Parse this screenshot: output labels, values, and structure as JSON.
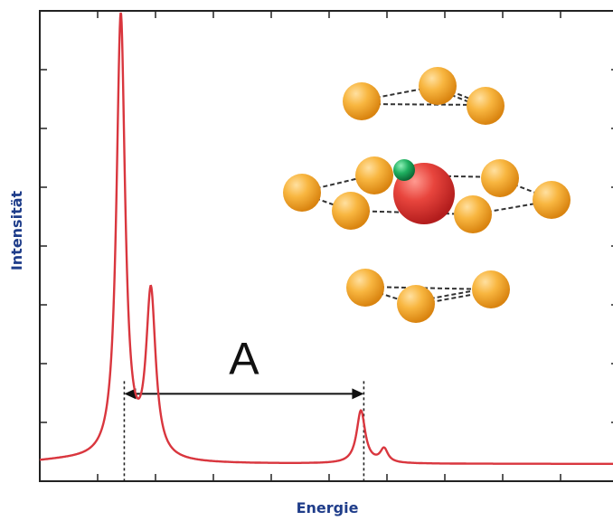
{
  "chart_data": {
    "type": "line",
    "title": "",
    "xlabel": "Energie",
    "ylabel": "Intensität",
    "annotation": "A",
    "xlim": [
      0,
      100
    ],
    "ylim": [
      0,
      100
    ],
    "grid": false,
    "legend": "none",
    "x_ticks": [
      1,
      2,
      3,
      4,
      5,
      6,
      7,
      8,
      9
    ],
    "y_ticks": [
      1,
      2,
      3,
      4,
      5,
      6,
      7
    ],
    "peaks": [
      {
        "x": 14.0,
        "height": 97,
        "width": 0.9
      },
      {
        "x": 19.2,
        "height": 36,
        "width": 1.0
      },
      {
        "x": 55.5,
        "height": 11.5,
        "width": 0.9
      },
      {
        "x": 59.5,
        "height": 3,
        "width": 0.8
      }
    ],
    "marker_lines": [
      14.6,
      56.0
    ],
    "annotation_arrow": {
      "from": 14.6,
      "to": 56.0,
      "y": 16.5
    },
    "colors": {
      "line": "#d9363e",
      "axis": "#222222",
      "label": "#1f3d8a",
      "atom_orange": "#f5a623",
      "atom_red": "#e0302f",
      "atom_green": "#1aa05a"
    }
  }
}
